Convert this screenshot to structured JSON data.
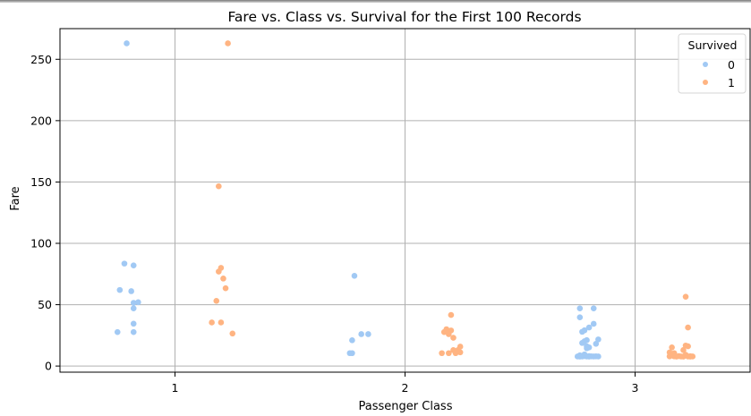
{
  "chart_data": {
    "type": "scatter",
    "title": "Fare vs. Class vs. Survival for the First 100 Records",
    "xlabel": "Passenger Class",
    "ylabel": "Fare",
    "categories": [
      "1",
      "2",
      "3"
    ],
    "xlim": [
      0.5,
      3.5
    ],
    "ylim": [
      -5,
      275
    ],
    "yticks": [
      0,
      50,
      100,
      150,
      200,
      250
    ],
    "grid": true,
    "legend": {
      "title": "Survived",
      "position": "top-right"
    },
    "colors": {
      "0": "#a1c9f4",
      "1": "#ffb482"
    },
    "series": [
      {
        "name": "0",
        "points": [
          [
            0.79,
            263
          ],
          [
            0.78,
            83.5
          ],
          [
            0.82,
            82
          ],
          [
            0.76,
            62
          ],
          [
            0.81,
            61
          ],
          [
            0.84,
            52
          ],
          [
            0.82,
            51.5
          ],
          [
            0.82,
            47
          ],
          [
            0.82,
            34.5
          ],
          [
            0.75,
            27.7
          ],
          [
            0.82,
            27.7
          ],
          [
            1.78,
            73.5
          ],
          [
            1.81,
            26
          ],
          [
            1.84,
            26
          ],
          [
            1.77,
            21
          ],
          [
            1.76,
            10.5
          ],
          [
            1.77,
            10.5
          ],
          [
            2.76,
            47
          ],
          [
            2.82,
            47
          ],
          [
            2.76,
            39.7
          ],
          [
            2.82,
            34.4
          ],
          [
            2.8,
            31.4
          ],
          [
            2.78,
            29.1
          ],
          [
            2.77,
            27.9
          ],
          [
            2.84,
            21.7
          ],
          [
            2.79,
            21.1
          ],
          [
            2.78,
            20.2
          ],
          [
            2.77,
            18.8
          ],
          [
            2.83,
            18.1
          ],
          [
            2.79,
            16.1
          ],
          [
            2.8,
            15.2
          ],
          [
            2.79,
            14.5
          ],
          [
            2.78,
            9.5
          ],
          [
            2.76,
            8.7
          ],
          [
            2.8,
            8.1
          ],
          [
            2.78,
            8.1
          ],
          [
            2.77,
            8.0
          ],
          [
            2.81,
            7.9
          ],
          [
            2.83,
            7.9
          ],
          [
            2.75,
            7.8
          ],
          [
            2.77,
            7.8
          ],
          [
            2.79,
            7.8
          ],
          [
            2.82,
            7.8
          ],
          [
            2.84,
            7.8
          ],
          [
            2.76,
            7.7
          ],
          [
            2.8,
            7.7
          ]
        ]
      },
      {
        "name": "1",
        "points": [
          [
            1.23,
            263
          ],
          [
            1.19,
            146.5
          ],
          [
            1.2,
            80
          ],
          [
            1.19,
            77
          ],
          [
            1.21,
            71.3
          ],
          [
            1.22,
            63.4
          ],
          [
            1.18,
            53.1
          ],
          [
            1.16,
            35.5
          ],
          [
            1.2,
            35.5
          ],
          [
            1.25,
            26.5
          ],
          [
            2.2,
            41.6
          ],
          [
            2.18,
            30
          ],
          [
            2.2,
            29
          ],
          [
            2.17,
            27.7
          ],
          [
            2.19,
            26
          ],
          [
            2.21,
            23
          ],
          [
            2.24,
            15.8
          ],
          [
            2.21,
            13
          ],
          [
            2.23,
            13
          ],
          [
            2.24,
            11.2
          ],
          [
            2.16,
            10.5
          ],
          [
            2.19,
            10.5
          ],
          [
            2.22,
            10.5
          ],
          [
            3.22,
            56.5
          ],
          [
            3.23,
            31.4
          ],
          [
            3.22,
            16.7
          ],
          [
            3.23,
            16.1
          ],
          [
            3.16,
            15.2
          ],
          [
            3.21,
            13
          ],
          [
            3.15,
            11.1
          ],
          [
            3.17,
            10.5
          ],
          [
            3.22,
            9.2
          ],
          [
            3.16,
            8.7
          ],
          [
            3.19,
            8.1
          ],
          [
            3.24,
            8.0
          ],
          [
            3.15,
            7.9
          ],
          [
            3.17,
            7.9
          ],
          [
            3.2,
            7.8
          ],
          [
            3.23,
            7.8
          ],
          [
            3.25,
            7.8
          ],
          [
            3.18,
            7.7
          ],
          [
            3.21,
            7.7
          ],
          [
            3.24,
            7.7
          ]
        ]
      }
    ]
  }
}
